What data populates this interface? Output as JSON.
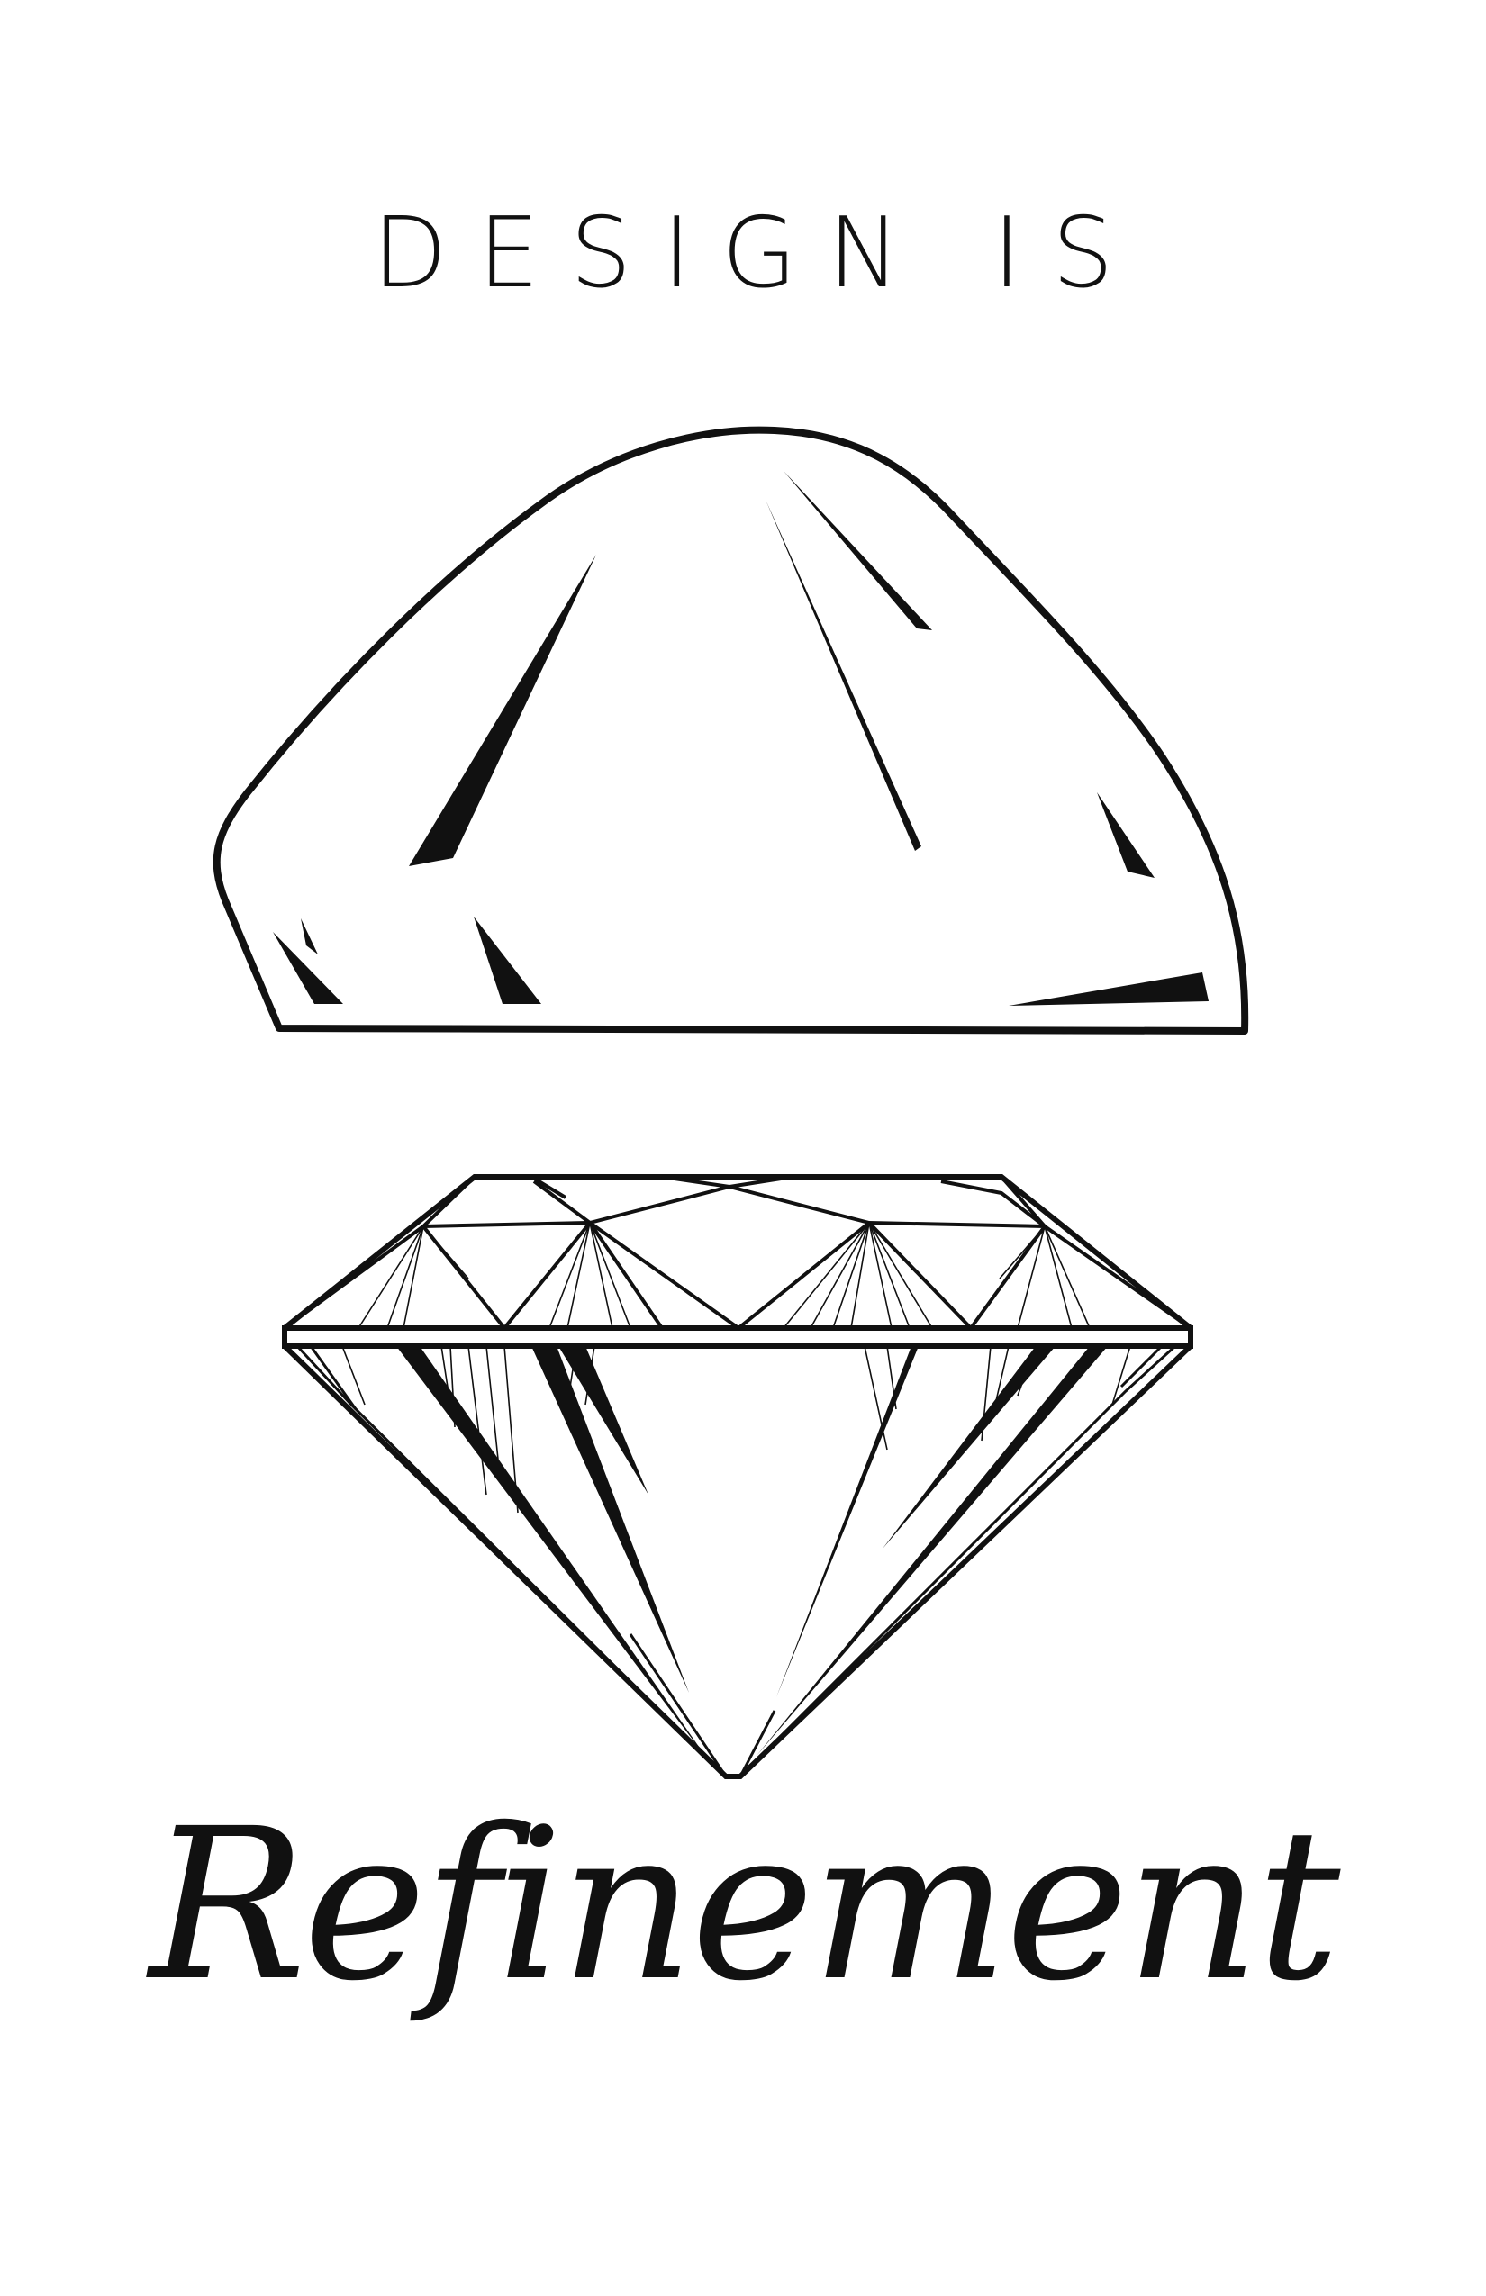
{
  "poster": {
    "headline": "DESIGN IS",
    "tagline": "Refinement",
    "illustrations": {
      "top": "rough-stone-icon",
      "bottom": "cut-diamond-icon"
    },
    "colors": {
      "ink": "#111111",
      "background": "#ffffff"
    }
  }
}
